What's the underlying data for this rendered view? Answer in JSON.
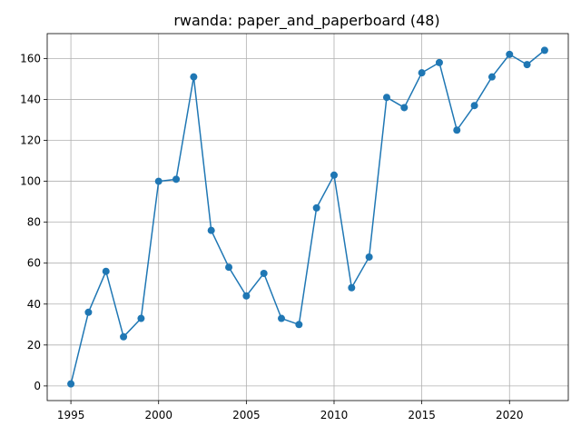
{
  "chart_data": {
    "type": "line",
    "title": "rwanda: paper_and_paperboard (48)",
    "xlabel": "",
    "ylabel": "",
    "x": [
      1995,
      1996,
      1997,
      1998,
      1999,
      2000,
      2001,
      2002,
      2003,
      2004,
      2005,
      2006,
      2007,
      2008,
      2009,
      2010,
      2011,
      2012,
      2013,
      2014,
      2015,
      2016,
      2017,
      2018,
      2019,
      2020,
      2021,
      2022
    ],
    "series": [
      {
        "values": [
          1,
          36,
          56,
          24,
          33,
          100,
          101,
          151,
          76,
          58,
          44,
          55,
          33,
          30,
          87,
          103,
          48,
          63,
          141,
          136,
          153,
          158,
          125,
          137,
          151,
          162,
          157,
          164
        ],
        "color": "#1f77b4",
        "marker": "circle"
      }
    ],
    "xticks": [
      1995,
      2000,
      2005,
      2010,
      2015,
      2020
    ],
    "yticks": [
      0,
      20,
      40,
      60,
      80,
      100,
      120,
      140,
      160
    ],
    "xlim": [
      1993.65,
      2023.35
    ],
    "ylim": [
      -7.15,
      172.15
    ],
    "grid": true,
    "legend": "none"
  }
}
